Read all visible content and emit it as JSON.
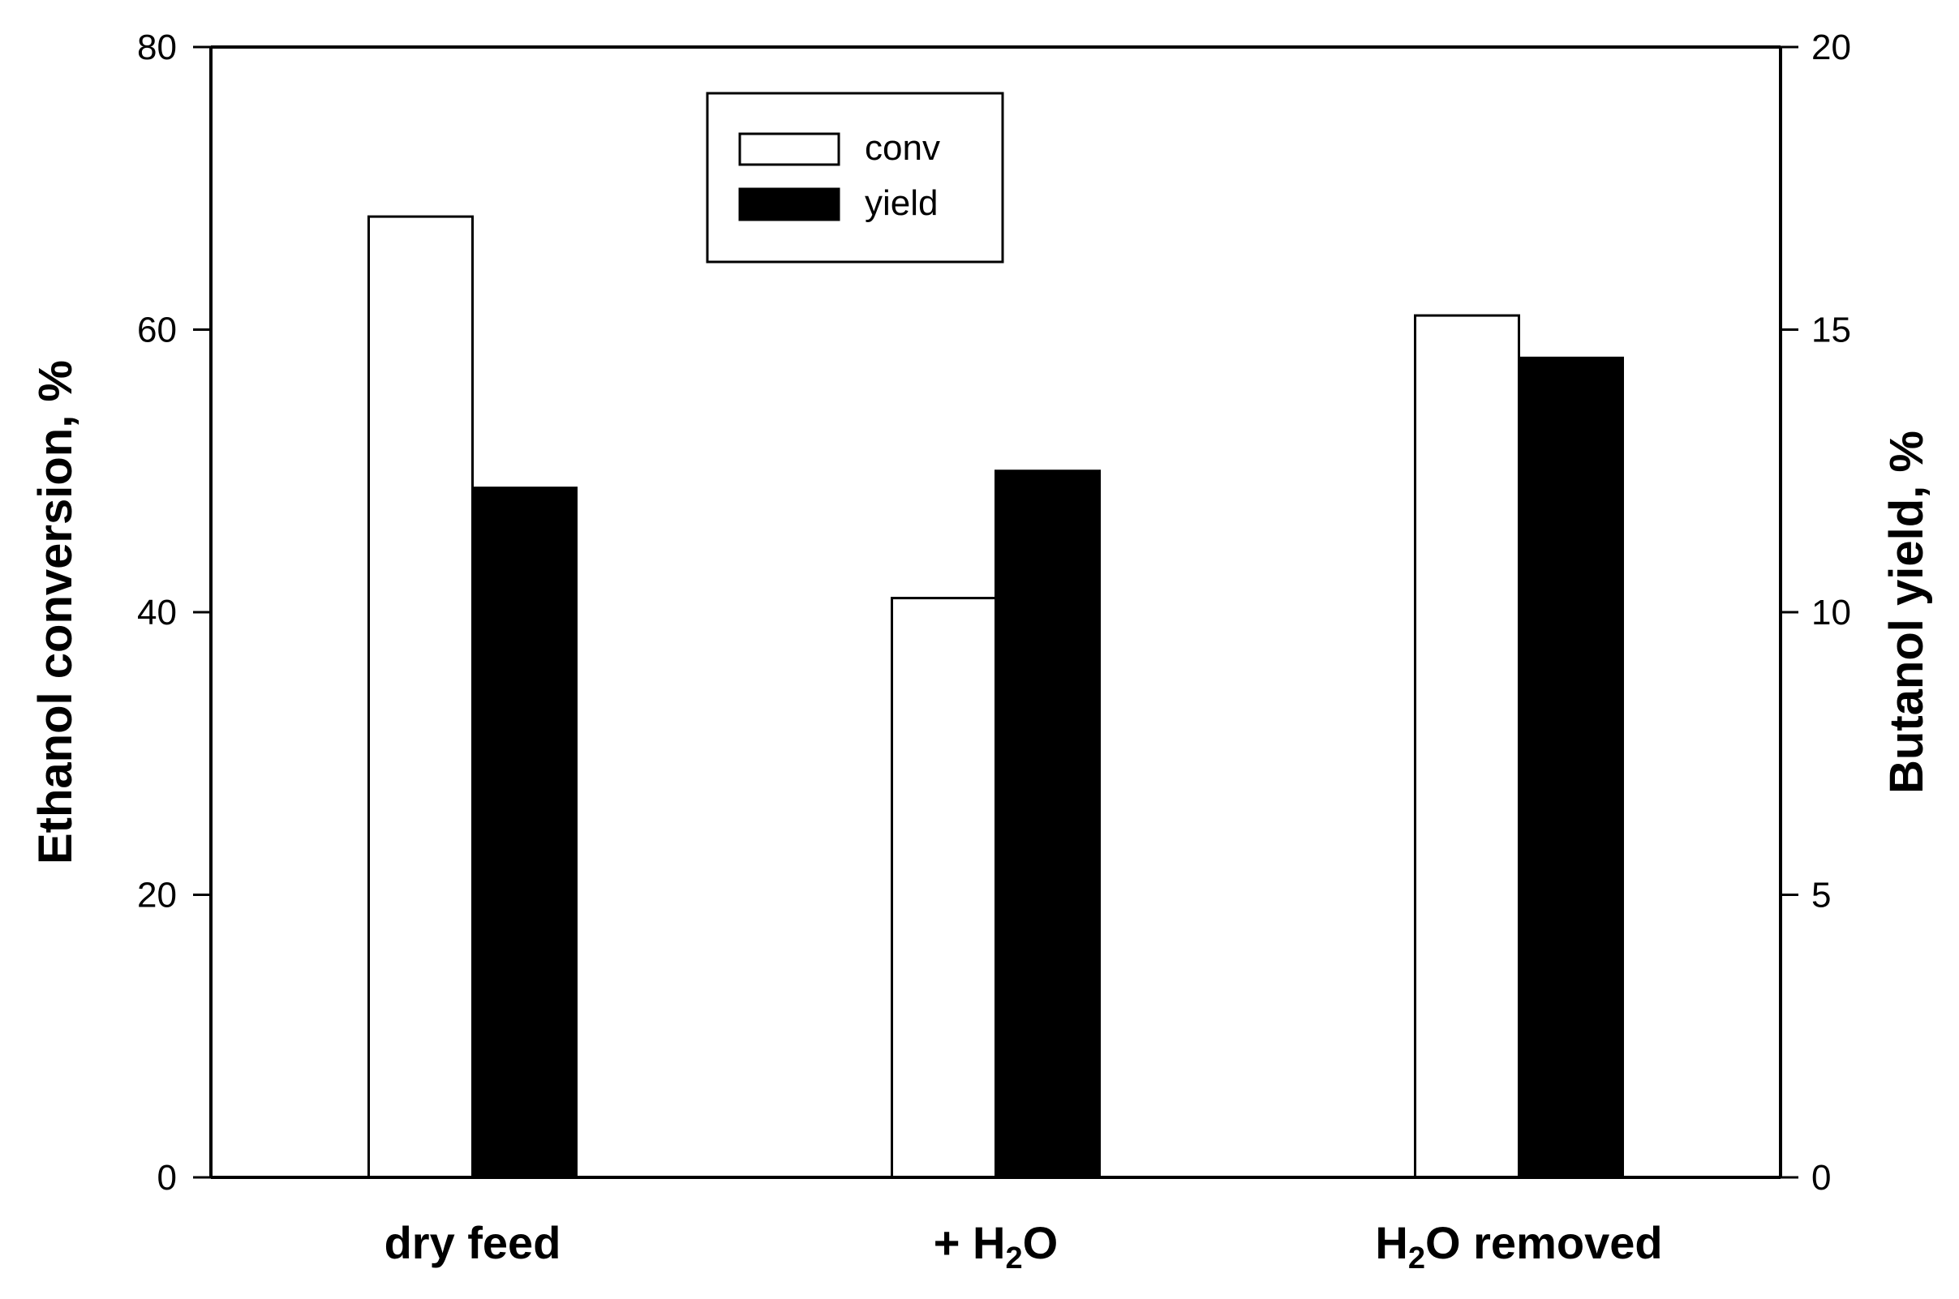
{
  "chart_data": {
    "type": "bar",
    "title": "",
    "categories": [
      {
        "label": "dry feed",
        "parts": [
          {
            "t": "dry feed"
          }
        ]
      },
      {
        "label": "+ H2O",
        "parts": [
          {
            "t": "+ H"
          },
          {
            "t": "2",
            "sub": true
          },
          {
            "t": "O"
          }
        ]
      },
      {
        "label": "H2O removed",
        "parts": [
          {
            "t": "H"
          },
          {
            "t": "2",
            "sub": true
          },
          {
            "t": "O removed"
          }
        ]
      }
    ],
    "series": [
      {
        "name": "conv",
        "axis": "left",
        "color": "#ffffff",
        "values": [
          68,
          41,
          61
        ]
      },
      {
        "name": "yield",
        "axis": "right",
        "color": "#000000",
        "values": [
          12.2,
          12.5,
          14.5
        ]
      }
    ],
    "left_axis": {
      "label": "Ethanol conversion, %",
      "lim": [
        0,
        80
      ],
      "ticks": [
        0,
        20,
        40,
        60,
        80
      ]
    },
    "right_axis": {
      "label": "Butanol yield, %",
      "lim": [
        0,
        20
      ],
      "ticks": [
        0,
        5,
        10,
        15,
        20
      ]
    },
    "legend": {
      "position": "top-center",
      "entries": [
        "conv",
        "yield"
      ]
    },
    "grid": false
  }
}
